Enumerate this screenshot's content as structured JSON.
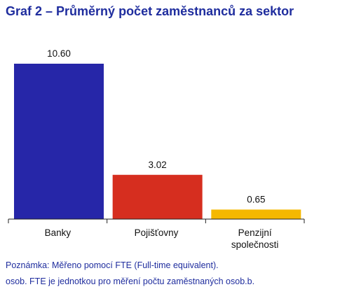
{
  "chart_data": {
    "type": "bar",
    "title": "Graf 2 – Průměrný počet zaměstnanců za sektor",
    "categories": [
      "Banky",
      "Pojišťovny",
      "Penzijní\nspolečnosti"
    ],
    "values": [
      10.6,
      3.02,
      0.65
    ],
    "value_labels": [
      "10.60",
      "3.02",
      "0.65"
    ],
    "colors": [
      "#2626a8",
      "#d62e1f",
      "#f5b800"
    ],
    "xlabel": "",
    "ylabel": "",
    "ylim": [
      0,
      10.6
    ],
    "grid": false,
    "legend": "none"
  },
  "notes": {
    "line1": "Poznámka: Měřeno pomocí FTE (Full-time equivalent).",
    "line2": "osob. FTE je jednotkou pro měření počtu zaměstnaných osob.b."
  }
}
